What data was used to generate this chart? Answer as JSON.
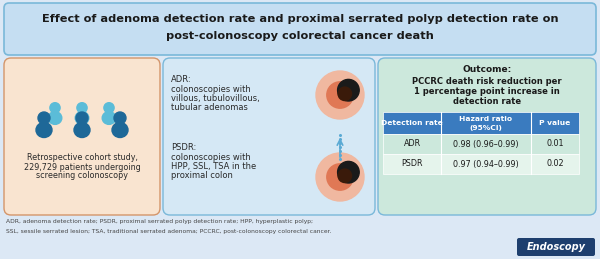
{
  "title_line1": "Effect of adenoma detection rate and proximal serrated polyp detection rate on",
  "title_line2": "post-colonoscopy colorectal cancer death",
  "title_bg": "#c5def2",
  "title_border": "#7ab8d9",
  "fig_bg": "#dce8f5",
  "panel1_bg": "#f9e4d0",
  "panel1_border": "#d4956a",
  "panel1_text_line1": "Retrospective cohort study,",
  "panel1_text_line2": "229,729 patients undergoing",
  "panel1_text_line3": "screening colonoscopy",
  "panel2_bg": "#d5e8f5",
  "panel2_border": "#7ab8d9",
  "panel2_adr_line1": "ADR:",
  "panel2_adr_line2": "colonoscopies with",
  "panel2_adr_line3": "villous, tubulovillous,",
  "panel2_adr_line4": "tubular adenomas",
  "panel2_psdr_line1": "PSDR:",
  "panel2_psdr_line2": "colonoscopies with",
  "panel2_psdr_line3": "HPP, SSL, TSA in the",
  "panel2_psdr_line4": "proximal colon",
  "panel3_bg": "#cce8dc",
  "panel3_border": "#7ab8d9",
  "panel3_outcome_title": "Outcome:",
  "panel3_outcome_desc1": "PCCRC death risk reduction per",
  "panel3_outcome_desc2": "1 percentage point increase in",
  "panel3_outcome_desc3": "detection rate",
  "table_header_bg": "#3a7bbf",
  "table_header_color": "#ffffff",
  "table_row1_bg": "#cce8dc",
  "table_row2_bg": "#e5f4ec",
  "col_headers": [
    "Detection rate",
    "Hazard ratio\n(95%CI)",
    "P value"
  ],
  "table_rows": [
    [
      "ADR",
      "0.98 (0.96–0.99)",
      "0.01"
    ],
    [
      "PSDR",
      "0.97 (0.94–0.99)",
      "0.02"
    ]
  ],
  "footnote_line1": "ADR, adenoma detection rate; PSDR, proximal serrated polyp detection rate; HPP, hyperplastic polyp;",
  "footnote_line2": "SSL, sessile serrated lesion; TSA, traditional serrated adenoma; PCCRC, post-colonoscopy colorectal cancer.",
  "endoscopy_bg": "#1e3f6e",
  "endoscopy_text": "Endoscopy",
  "endoscopy_color": "#ffffff",
  "person_light": "#5bbcd8",
  "person_dark": "#1e6898"
}
